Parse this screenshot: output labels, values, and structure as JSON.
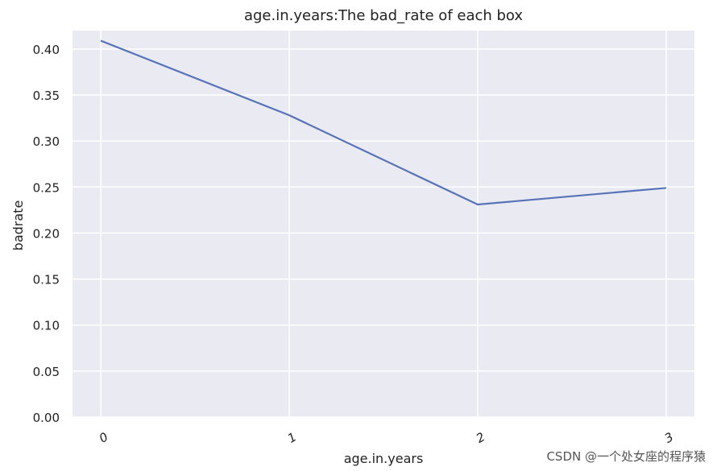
{
  "chart_data": {
    "type": "line",
    "title": "age.in.years:The bad_rate of each box",
    "xlabel": "age.in.years",
    "ylabel": "badrate",
    "x": [
      0,
      1,
      2,
      3
    ],
    "x_tick_labels": [
      "0",
      "1",
      "2",
      "3"
    ],
    "y_ticks": [
      "0.00",
      "0.05",
      "0.10",
      "0.15",
      "0.20",
      "0.25",
      "0.30",
      "0.35",
      "0.40"
    ],
    "series": [
      {
        "values": [
          0.409,
          0.328,
          0.231,
          0.249
        ]
      }
    ],
    "ylim": [
      0,
      0.42
    ],
    "xlim": [
      -0.15,
      3.15
    ],
    "grid": true,
    "colors": {
      "line": "#5773b8",
      "background": "#eaeaf2",
      "grid": "#ffffff"
    }
  },
  "watermark": "CSDN @一个处女座的程序猿"
}
